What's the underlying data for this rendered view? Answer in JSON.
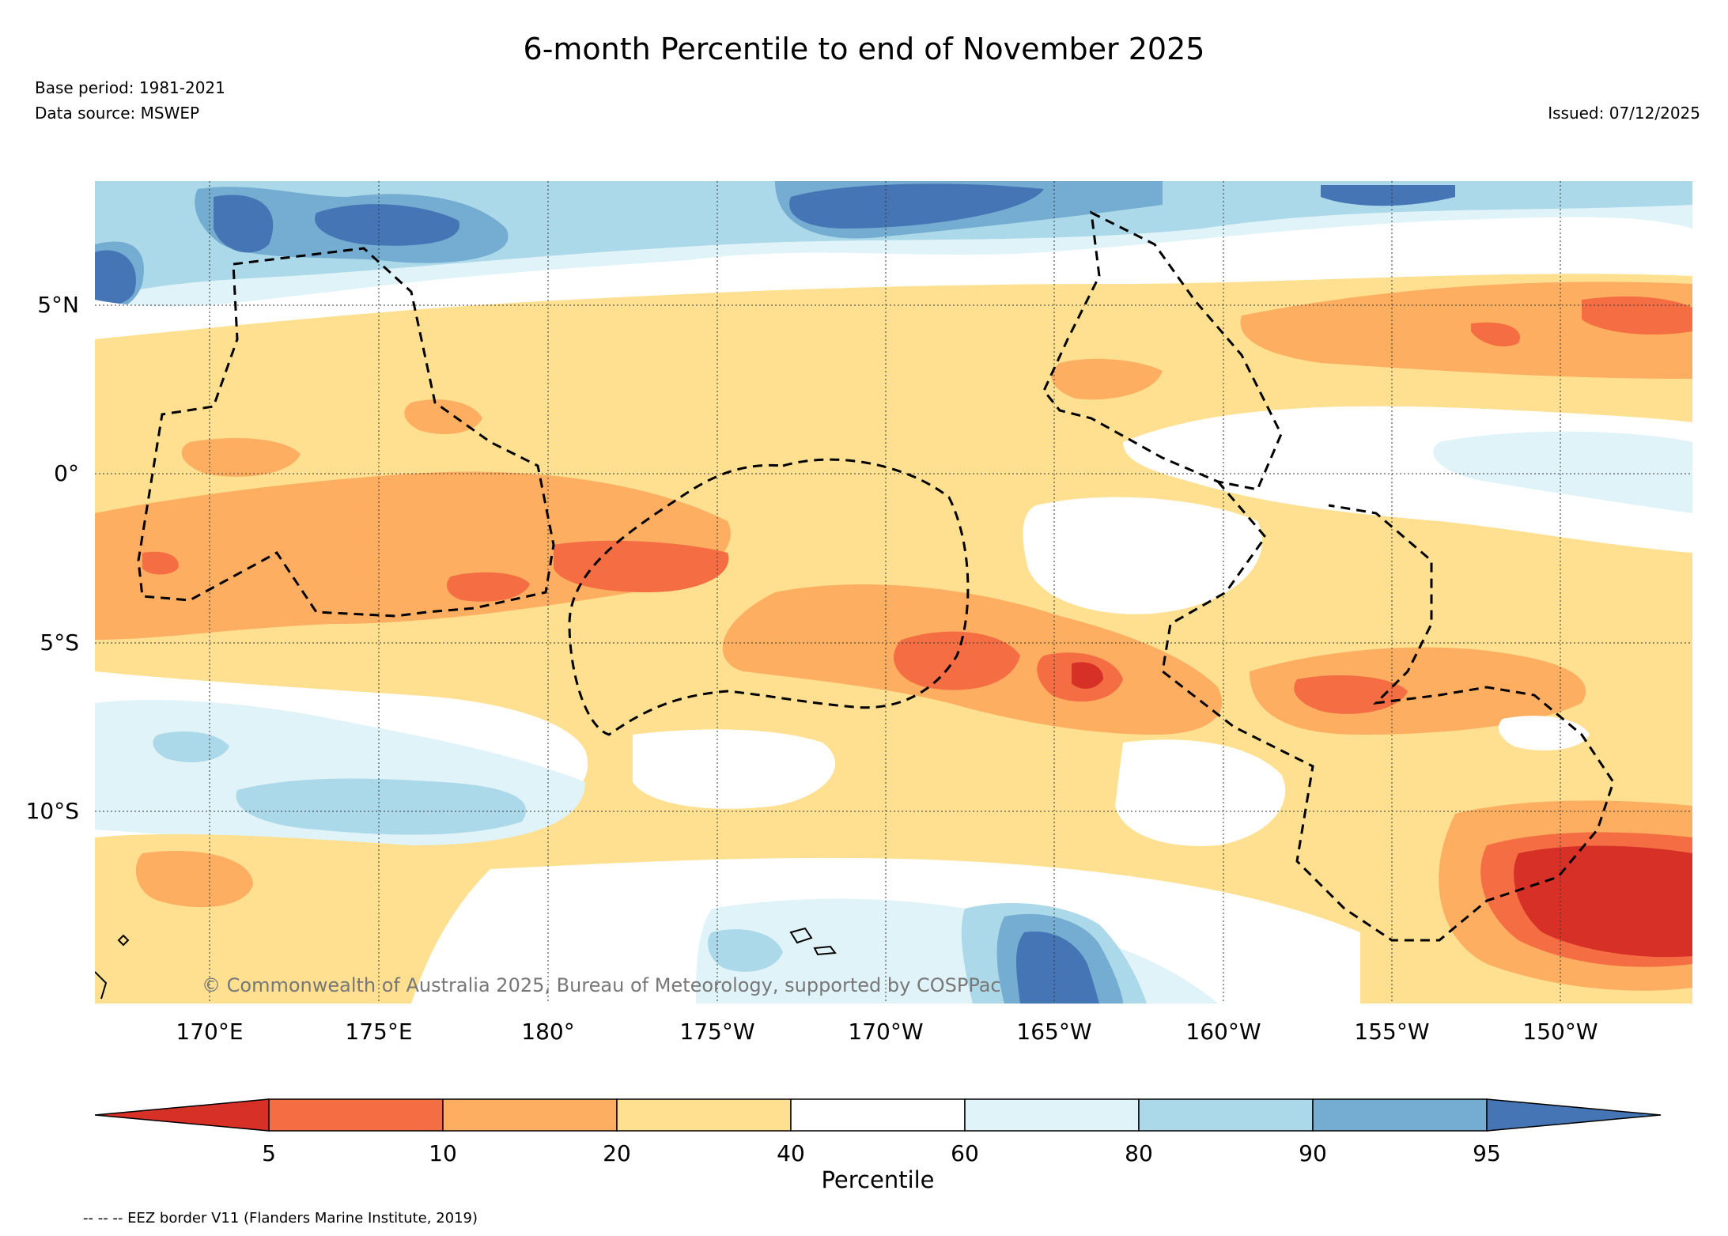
{
  "header": {
    "title": "6-month Percentile to end of November 2025",
    "base_period": "Base period: 1981-2021",
    "data_source": "Data source: MSWEP",
    "issued": "Issued: 07/12/2025"
  },
  "map": {
    "lat_labels": [
      "5°N",
      "0°",
      "5°S",
      "10°S"
    ],
    "lon_labels": [
      "170°E",
      "175°E",
      "180°",
      "175°W",
      "170°W",
      "165°W",
      "160°W",
      "155°W",
      "150°W"
    ],
    "copyright": "© Commonwealth of Australia 2025, Bureau of Meteorology, supported by COSPPac"
  },
  "colorbar": {
    "ticks": [
      "5",
      "10",
      "20",
      "40",
      "60",
      "80",
      "90",
      "95"
    ],
    "label": "Percentile",
    "colors": [
      "#d73027",
      "#f46d43",
      "#fdae61",
      "#fee090",
      "#ffffff",
      "#e0f3f8",
      "#abd9e9",
      "#74add1",
      "#4575b4"
    ]
  },
  "footer": {
    "eez_note": "-- -- -- EEZ border V11 (Flanders Marine Institute, 2019)"
  }
}
